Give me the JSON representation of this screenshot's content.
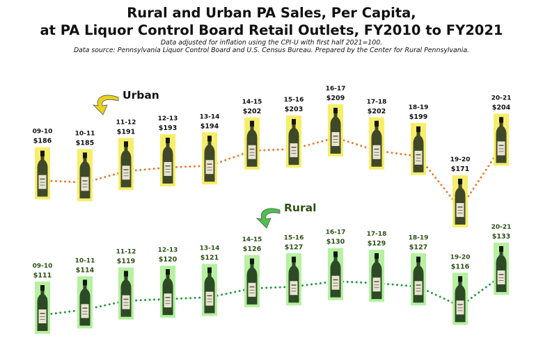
{
  "chart_data": {
    "type": "line",
    "title_lines": [
      "Rural and Urban PA Sales, Per Capita,",
      "at PA Liquor Control Board Retail Outlets, FY2010 to FY2021"
    ],
    "subtitle_lines": [
      "Data adjusted for inflation using the CPI-U with first half 2021=100.",
      "Data source: Pennsylvania Liquor Control Board and U.S. Census Bureau. Prepared by the Center for Rural Pennsylvania."
    ],
    "categories": [
      "09-10",
      "10-11",
      "11-12",
      "12-13",
      "13-14",
      "14-15",
      "15-16",
      "16-17",
      "17-18",
      "18-19",
      "19-20",
      "20-21"
    ],
    "series": [
      {
        "name": "Urban",
        "values": [
          186,
          185,
          191,
          193,
          194,
          202,
          203,
          209,
          202,
          199,
          171,
          204
        ],
        "value_labels": [
          "$186",
          "$185",
          "$191",
          "$193",
          "$194",
          "$202",
          "$203",
          "$209",
          "$202",
          "$199",
          "$171",
          "$204"
        ],
        "line_color": "#e87a2e",
        "highlight_color": "#f6ee6a",
        "label_color": "#111111",
        "arrow_color": "#e8d21c"
      },
      {
        "name": "Rural",
        "values": [
          111,
          114,
          119,
          120,
          121,
          126,
          127,
          130,
          129,
          127,
          116,
          133
        ],
        "value_labels": [
          "$111",
          "$114",
          "$119",
          "$120",
          "$121",
          "$126",
          "$127",
          "$130",
          "$129",
          "$127",
          "$116",
          "$133"
        ],
        "line_color": "#1f9a3a",
        "highlight_color": "#b6f0a0",
        "label_color": "#2e5216",
        "arrow_color": "#4cc04c"
      }
    ],
    "marker": "wine-bottle",
    "grid": false
  }
}
